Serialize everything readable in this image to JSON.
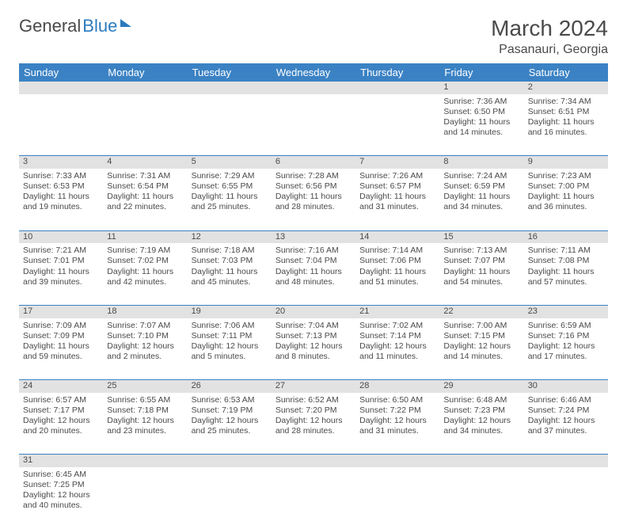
{
  "logo": {
    "text1": "General",
    "text2": "Blue"
  },
  "title": "March 2024",
  "location": "Pasanauri, Georgia",
  "colors": {
    "header_bg": "#3b82c4",
    "daynum_bg": "#e2e2e2",
    "border": "#3b82c4",
    "text": "#4a4a4a",
    "logo_blue": "#2b7bbf"
  },
  "day_headers": [
    "Sunday",
    "Monday",
    "Tuesday",
    "Wednesday",
    "Thursday",
    "Friday",
    "Saturday"
  ],
  "weeks": [
    {
      "nums": [
        "",
        "",
        "",
        "",
        "",
        "1",
        "2"
      ],
      "cells": [
        null,
        null,
        null,
        null,
        null,
        {
          "sunrise": "7:36 AM",
          "sunset": "6:50 PM",
          "dayh": "11",
          "daym": "14"
        },
        {
          "sunrise": "7:34 AM",
          "sunset": "6:51 PM",
          "dayh": "11",
          "daym": "16"
        }
      ]
    },
    {
      "nums": [
        "3",
        "4",
        "5",
        "6",
        "7",
        "8",
        "9"
      ],
      "cells": [
        {
          "sunrise": "7:33 AM",
          "sunset": "6:53 PM",
          "dayh": "11",
          "daym": "19"
        },
        {
          "sunrise": "7:31 AM",
          "sunset": "6:54 PM",
          "dayh": "11",
          "daym": "22"
        },
        {
          "sunrise": "7:29 AM",
          "sunset": "6:55 PM",
          "dayh": "11",
          "daym": "25"
        },
        {
          "sunrise": "7:28 AM",
          "sunset": "6:56 PM",
          "dayh": "11",
          "daym": "28"
        },
        {
          "sunrise": "7:26 AM",
          "sunset": "6:57 PM",
          "dayh": "11",
          "daym": "31"
        },
        {
          "sunrise": "7:24 AM",
          "sunset": "6:59 PM",
          "dayh": "11",
          "daym": "34"
        },
        {
          "sunrise": "7:23 AM",
          "sunset": "7:00 PM",
          "dayh": "11",
          "daym": "36"
        }
      ]
    },
    {
      "nums": [
        "10",
        "11",
        "12",
        "13",
        "14",
        "15",
        "16"
      ],
      "cells": [
        {
          "sunrise": "7:21 AM",
          "sunset": "7:01 PM",
          "dayh": "11",
          "daym": "39"
        },
        {
          "sunrise": "7:19 AM",
          "sunset": "7:02 PM",
          "dayh": "11",
          "daym": "42"
        },
        {
          "sunrise": "7:18 AM",
          "sunset": "7:03 PM",
          "dayh": "11",
          "daym": "45"
        },
        {
          "sunrise": "7:16 AM",
          "sunset": "7:04 PM",
          "dayh": "11",
          "daym": "48"
        },
        {
          "sunrise": "7:14 AM",
          "sunset": "7:06 PM",
          "dayh": "11",
          "daym": "51"
        },
        {
          "sunrise": "7:13 AM",
          "sunset": "7:07 PM",
          "dayh": "11",
          "daym": "54"
        },
        {
          "sunrise": "7:11 AM",
          "sunset": "7:08 PM",
          "dayh": "11",
          "daym": "57"
        }
      ]
    },
    {
      "nums": [
        "17",
        "18",
        "19",
        "20",
        "21",
        "22",
        "23"
      ],
      "cells": [
        {
          "sunrise": "7:09 AM",
          "sunset": "7:09 PM",
          "dayh": "11",
          "daym": "59"
        },
        {
          "sunrise": "7:07 AM",
          "sunset": "7:10 PM",
          "dayh": "12",
          "daym": "2"
        },
        {
          "sunrise": "7:06 AM",
          "sunset": "7:11 PM",
          "dayh": "12",
          "daym": "5"
        },
        {
          "sunrise": "7:04 AM",
          "sunset": "7:13 PM",
          "dayh": "12",
          "daym": "8"
        },
        {
          "sunrise": "7:02 AM",
          "sunset": "7:14 PM",
          "dayh": "12",
          "daym": "11"
        },
        {
          "sunrise": "7:00 AM",
          "sunset": "7:15 PM",
          "dayh": "12",
          "daym": "14"
        },
        {
          "sunrise": "6:59 AM",
          "sunset": "7:16 PM",
          "dayh": "12",
          "daym": "17"
        }
      ]
    },
    {
      "nums": [
        "24",
        "25",
        "26",
        "27",
        "28",
        "29",
        "30"
      ],
      "cells": [
        {
          "sunrise": "6:57 AM",
          "sunset": "7:17 PM",
          "dayh": "12",
          "daym": "20"
        },
        {
          "sunrise": "6:55 AM",
          "sunset": "7:18 PM",
          "dayh": "12",
          "daym": "23"
        },
        {
          "sunrise": "6:53 AM",
          "sunset": "7:19 PM",
          "dayh": "12",
          "daym": "25"
        },
        {
          "sunrise": "6:52 AM",
          "sunset": "7:20 PM",
          "dayh": "12",
          "daym": "28"
        },
        {
          "sunrise": "6:50 AM",
          "sunset": "7:22 PM",
          "dayh": "12",
          "daym": "31"
        },
        {
          "sunrise": "6:48 AM",
          "sunset": "7:23 PM",
          "dayh": "12",
          "daym": "34"
        },
        {
          "sunrise": "6:46 AM",
          "sunset": "7:24 PM",
          "dayh": "12",
          "daym": "37"
        }
      ]
    },
    {
      "nums": [
        "31",
        "",
        "",
        "",
        "",
        "",
        ""
      ],
      "cells": [
        {
          "sunrise": "6:45 AM",
          "sunset": "7:25 PM",
          "dayh": "12",
          "daym": "40"
        },
        null,
        null,
        null,
        null,
        null,
        null
      ]
    }
  ],
  "labels": {
    "sunrise": "Sunrise: ",
    "sunset": "Sunset: ",
    "daylight1": "Daylight: ",
    "daylight2": " hours and ",
    "daylight3": " minutes."
  }
}
